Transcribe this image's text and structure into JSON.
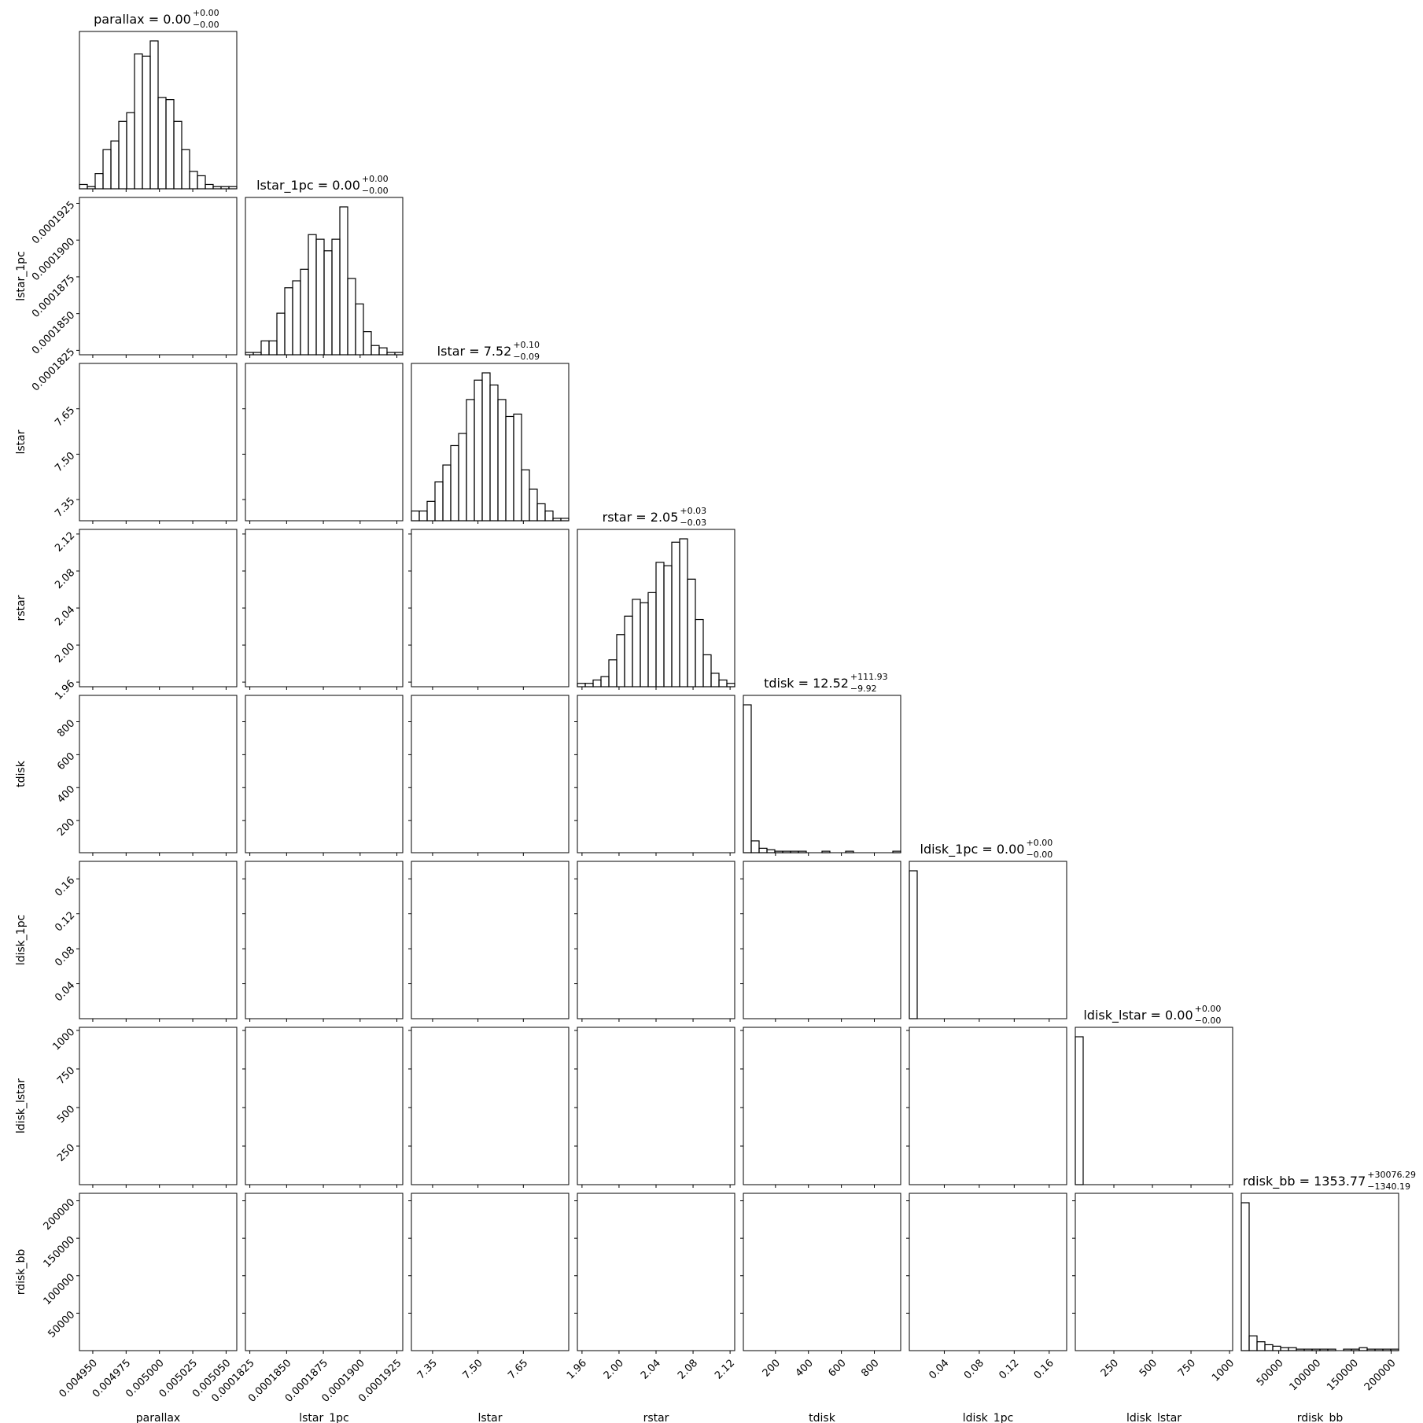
{
  "chart_data": {
    "type": "corner",
    "color": "#000000",
    "params": [
      {
        "name": "parallax",
        "title": "parallax = 0.00",
        "upper": "+0.00",
        "lower": "−0.00",
        "xlim": [
          0.00494,
          0.005058
        ],
        "ticks": [
          {
            "value": 0.00495,
            "label": "0.004950"
          },
          {
            "value": 0.004975,
            "label": "0.004975"
          },
          {
            "value": 0.005,
            "label": "0.005000"
          },
          {
            "value": 0.005025,
            "label": "0.005025"
          },
          {
            "value": 0.00505,
            "label": "0.005050"
          }
        ],
        "counts": [
          2,
          1,
          7,
          18,
          22,
          31,
          35,
          62,
          61,
          68,
          42,
          41,
          31,
          18,
          8,
          6,
          2,
          1,
          1,
          1
        ]
      },
      {
        "name": "lstar_1pc",
        "title": "lstar_1pc = 0.00",
        "upper": "+0.00",
        "lower": "−0.00",
        "xlim": [
          0.0001822,
          0.0001929
        ],
        "ticks": [
          {
            "value": 0.0001825,
            "label": "0.0001825"
          },
          {
            "value": 0.000185,
            "label": "0.0001850"
          },
          {
            "value": 0.0001875,
            "label": "0.0001875"
          },
          {
            "value": 0.00019,
            "label": "0.0001900"
          },
          {
            "value": 0.0001925,
            "label": "0.0001925"
          }
        ],
        "counts": [
          1,
          1,
          6,
          6,
          18,
          29,
          32,
          37,
          52,
          50,
          45,
          50,
          64,
          33,
          22,
          10,
          4,
          3,
          1,
          1
        ]
      },
      {
        "name": "lstar",
        "title": "lstar = 7.52",
        "upper": "+0.10",
        "lower": "−0.09",
        "xlim": [
          7.28,
          7.8
        ],
        "ticks": [
          7.35,
          {
            "value": 7.5,
            "label": "7.50"
          },
          7.65
        ],
        "counts": [
          4,
          4,
          8,
          16,
          23,
          31,
          36,
          50,
          58,
          61,
          56,
          50,
          43,
          44,
          21,
          13,
          7,
          4,
          1,
          1
        ]
      },
      {
        "name": "rstar",
        "title": "rstar = 2.05",
        "upper": "+0.03",
        "lower": "−0.03",
        "xlim": [
          1.955,
          2.125
        ],
        "ticks": [
          1.96,
          {
            "value": 2,
            "label": "2.00"
          },
          2.04,
          2.08,
          2.12
        ],
        "counts": [
          2,
          2,
          4,
          6,
          16,
          31,
          42,
          52,
          50,
          56,
          74,
          72,
          86,
          88,
          64,
          40,
          19,
          8,
          4,
          2
        ]
      },
      {
        "name": "tdisk",
        "title": "tdisk = 12.52",
        "upper": "+111.93",
        "lower": "−9.92",
        "xlim": [
          5,
          960
        ],
        "ticks": [
          200,
          400,
          600,
          800
        ],
        "counts": [
          100,
          8,
          3,
          2,
          1,
          1,
          1,
          1,
          0,
          0,
          1,
          0,
          0,
          1,
          0,
          0,
          0,
          0,
          0,
          1
        ]
      },
      {
        "name": "ldisk_1pc",
        "title": "ldisk_1pc = 0.00",
        "upper": "+0.00",
        "lower": "−0.00",
        "xlim": [
          0,
          0.18
        ],
        "ticks": [
          0.04,
          0.08,
          0.12,
          0.16
        ],
        "counts": [
          100,
          0,
          0,
          0,
          0,
          0,
          0,
          0,
          0,
          0,
          0,
          0,
          0,
          0,
          0,
          0,
          0,
          0,
          0,
          0
        ]
      },
      {
        "name": "ldisk_lstar",
        "title": "ldisk_lstar = 0.00",
        "upper": "+0.00",
        "lower": "−0.00",
        "xlim": [
          0,
          1020
        ],
        "ticks": [
          250,
          500,
          750,
          1000
        ],
        "counts": [
          100,
          0,
          0,
          0,
          0,
          0,
          0,
          0,
          0,
          0,
          0,
          0,
          0,
          0,
          0,
          0,
          0,
          0,
          0,
          0
        ]
      },
      {
        "name": "rdisk_bb",
        "title": "rdisk_bb = 1353.77",
        "upper": "+30076.29",
        "lower": "−1340.19",
        "xlim": [
          0,
          210000
        ],
        "ticks": [
          50000,
          100000,
          150000,
          200000
        ],
        "counts": [
          100,
          10,
          6,
          4,
          3,
          2,
          2,
          1,
          1,
          1,
          1,
          1,
          0,
          1,
          1,
          2,
          1,
          1,
          1,
          1
        ]
      }
    ]
  }
}
